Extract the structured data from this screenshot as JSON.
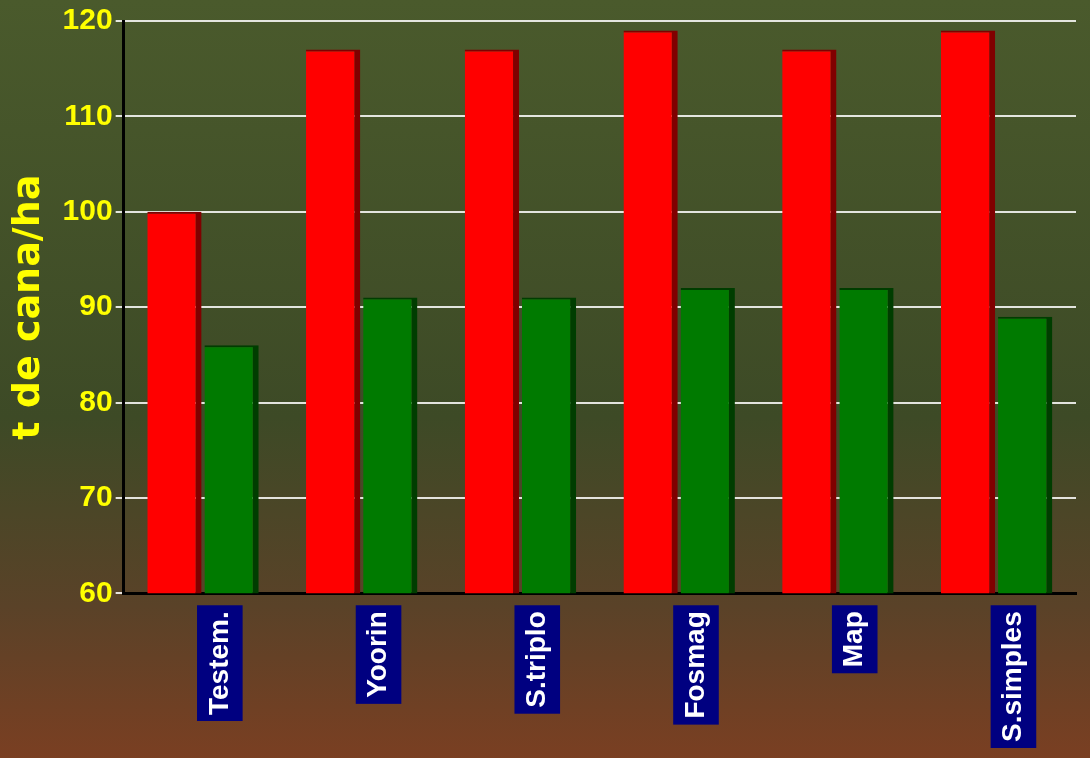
{
  "chart_data": {
    "type": "bar",
    "y_label": "t de cana/ha",
    "categories": [
      "Testem.",
      "Yoorin",
      "S.triplo",
      "Fosmag",
      "Map",
      "S.simples"
    ],
    "series": [
      {
        "color": "#ff0000",
        "values": [
          100,
          117,
          117,
          119,
          117,
          119
        ]
      },
      {
        "color": "#007a00",
        "values": [
          86,
          91,
          91,
          92,
          92,
          89
        ]
      }
    ],
    "ylim": [
      60,
      120
    ],
    "yticks": [
      60,
      70,
      80,
      90,
      100,
      110,
      120
    ],
    "grid": true
  }
}
